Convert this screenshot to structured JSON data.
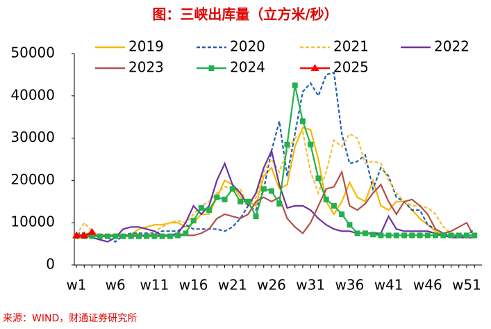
{
  "chart_data": {
    "type": "line",
    "title": "图：三峡出库量（立方米/秒）",
    "source": "来源：WIND，财通证券研究所",
    "categories": [
      "w1",
      null,
      null,
      null,
      null,
      "w6",
      null,
      null,
      null,
      null,
      "w11",
      null,
      null,
      null,
      null,
      "w16",
      null,
      null,
      null,
      null,
      "w21",
      null,
      null,
      null,
      null,
      "w26",
      null,
      null,
      null,
      null,
      "w31",
      null,
      null,
      null,
      null,
      "w36",
      null,
      null,
      null,
      null,
      "w41",
      null,
      null,
      null,
      null,
      "w46",
      null,
      null,
      null,
      null,
      "w51",
      null
    ],
    "ylim": [
      0,
      50000
    ],
    "yticks": [
      0,
      10000,
      20000,
      30000,
      40000,
      50000
    ],
    "grid": false,
    "legend": "top",
    "series": [
      {
        "name": "2019",
        "color": "#f5b800",
        "dashed": false,
        "marker": null,
        "values": [
          7000,
          7000,
          7000,
          7000,
          7000,
          7000,
          7000,
          7200,
          8500,
          9000,
          9500,
          9500,
          10000,
          10000,
          9000,
          10000,
          12000,
          12000,
          16000,
          20000,
          19000,
          16000,
          15000,
          14000,
          21000,
          23000,
          18000,
          19000,
          28000,
          32500,
          32000,
          25000,
          15000,
          12000,
          15000,
          19500,
          16000,
          15000,
          20000,
          14000,
          13000,
          15000,
          15000,
          13000,
          11000,
          9500,
          8000,
          7000,
          7000,
          7000,
          7000,
          7000
        ]
      },
      {
        "name": "2020",
        "color": "#1f5fb4",
        "dashed": true,
        "marker": null,
        "values": [
          7500,
          7500,
          7000,
          7000,
          6500,
          5500,
          7000,
          7500,
          7500,
          7500,
          7500,
          8000,
          8000,
          8000,
          9500,
          8500,
          8500,
          8500,
          8500,
          8000,
          9000,
          11000,
          14000,
          13000,
          18000,
          27000,
          34000,
          21000,
          31000,
          41000,
          43000,
          40000,
          45000,
          45500,
          31000,
          24000,
          24500,
          26000,
          18000,
          23000,
          21000,
          16000,
          15000,
          13000,
          13000,
          9500,
          8500,
          7500,
          7000,
          6500,
          7000,
          8500
        ]
      },
      {
        "name": "2021",
        "color": "#f5c030",
        "dashed": true,
        "marker": null,
        "values": [
          7000,
          10000,
          8000,
          7000,
          7000,
          7000,
          7000,
          7000,
          7000,
          7000,
          8000,
          9000,
          10000,
          10500,
          10000,
          12000,
          14000,
          15000,
          17000,
          18500,
          18000,
          18000,
          14000,
          16000,
          22000,
          25000,
          22000,
          27000,
          30000,
          31500,
          22000,
          17000,
          22000,
          29500,
          28000,
          31000,
          30000,
          24000,
          24500,
          24000,
          20000,
          17000,
          15000,
          14000,
          14000,
          13500,
          12000,
          9000,
          7500,
          7000,
          7000,
          7000
        ]
      },
      {
        "name": "2022",
        "color": "#7030a0",
        "dashed": false,
        "marker": null,
        "values": [
          6500,
          7000,
          6500,
          6000,
          5500,
          6500,
          8500,
          9000,
          9000,
          8500,
          8000,
          7000,
          7000,
          7500,
          10000,
          14000,
          12000,
          14000,
          20000,
          24000,
          19000,
          17000,
          14000,
          17000,
          23000,
          27000,
          19000,
          13500,
          14000,
          14000,
          13000,
          11000,
          9500,
          8500,
          8000,
          8000,
          7500,
          7500,
          7500,
          7500,
          11500,
          8500,
          8000,
          8000,
          8000,
          8000,
          7500,
          7000,
          6500,
          6500,
          6500,
          6500
        ]
      },
      {
        "name": "2023",
        "color": "#b0504a",
        "dashed": false,
        "marker": null,
        "values": [
          7000,
          7000,
          7000,
          7000,
          7000,
          7000,
          7000,
          7000,
          7000,
          7000,
          7000,
          7000,
          7000,
          7000,
          7000,
          7000,
          7500,
          8500,
          11000,
          12000,
          11500,
          11000,
          12000,
          15000,
          16000,
          15000,
          16000,
          11000,
          9000,
          7500,
          10000,
          14000,
          18000,
          18500,
          22000,
          14000,
          13000,
          14500,
          17000,
          19000,
          15000,
          12000,
          15000,
          15500,
          14000,
          12000,
          8500,
          7500,
          8000,
          9000,
          10000,
          6500
        ]
      },
      {
        "name": "2024",
        "color": "#22b14c",
        "dashed": false,
        "marker": "square",
        "values": [
          6800,
          6800,
          6800,
          6800,
          6800,
          6800,
          6800,
          6800,
          6800,
          6800,
          6800,
          6800,
          6800,
          7000,
          7500,
          10500,
          13500,
          13000,
          16000,
          15500,
          18000,
          15000,
          15000,
          11500,
          18000,
          17500,
          14500,
          28500,
          42500,
          34000,
          28500,
          20500,
          15500,
          14000,
          12000,
          9500,
          7500,
          7500,
          7200,
          7000,
          7000,
          7000,
          7000,
          7000,
          7000,
          7000,
          7000,
          7000,
          7000,
          7000,
          7000,
          7000
        ]
      },
      {
        "name": "2025",
        "color": "#ff0000",
        "dashed": false,
        "marker": "triangle",
        "values": [
          7000,
          7000,
          7800,
          null,
          null,
          null,
          null,
          null,
          null,
          null,
          null,
          null,
          null,
          null,
          null,
          null,
          null,
          null,
          null,
          null,
          null,
          null,
          null,
          null,
          null,
          null,
          null,
          null,
          null,
          null,
          null,
          null,
          null,
          null,
          null,
          null,
          null,
          null,
          null,
          null,
          null,
          null,
          null,
          null,
          null,
          null,
          null,
          null,
          null,
          null,
          null,
          null
        ]
      }
    ]
  }
}
